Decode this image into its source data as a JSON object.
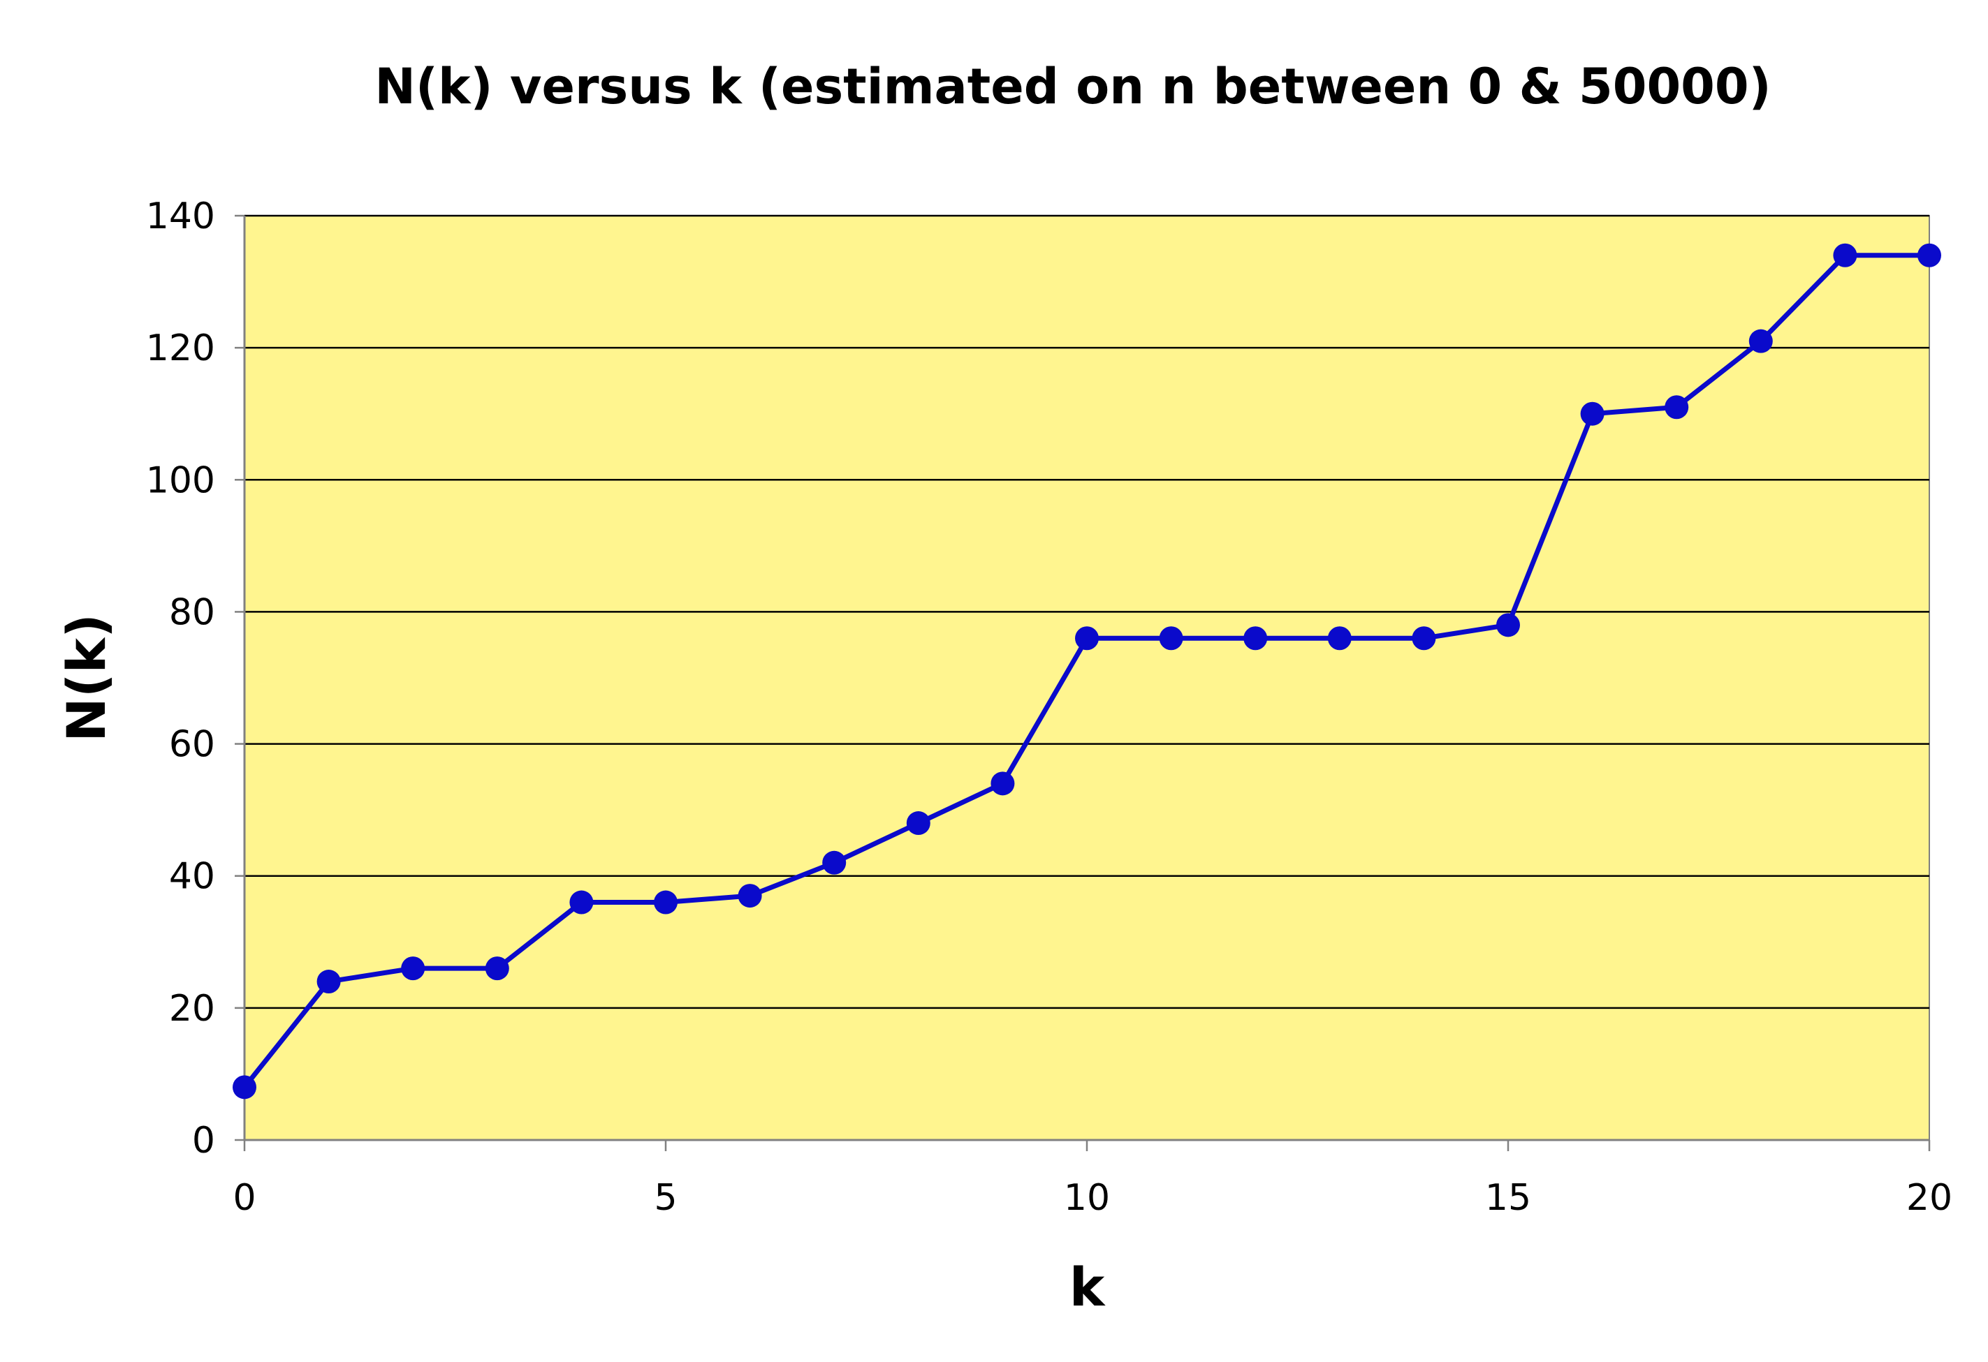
{
  "chart_data": {
    "type": "line",
    "title": "N(k) versus k (estimated on n between 0 & 50000)",
    "xlabel": "k",
    "ylabel": "N(k)",
    "xlim": [
      0,
      20
    ],
    "ylim": [
      0,
      140
    ],
    "x_ticks": [
      "0",
      "5",
      "10",
      "15",
      "20"
    ],
    "y_ticks": [
      "0",
      "20",
      "40",
      "60",
      "80",
      "100",
      "120",
      "140"
    ],
    "grid": true,
    "legend": "none",
    "series": [
      {
        "x": [
          0,
          1,
          2,
          3,
          4,
          5,
          6,
          7,
          8,
          9,
          10,
          11,
          12,
          13,
          14,
          15,
          16,
          17,
          18,
          19,
          20
        ],
        "y": [
          8,
          24,
          26,
          26,
          36,
          36,
          37,
          42,
          48,
          54,
          76,
          76,
          76,
          76,
          76,
          78,
          110,
          111,
          121,
          134,
          134
        ]
      }
    ],
    "colors": {
      "plot_background": "#FFF58F",
      "line": "#0A0ACB",
      "marker": "#0A0ACB",
      "gridline": "#000000",
      "axis": "#808080"
    }
  }
}
